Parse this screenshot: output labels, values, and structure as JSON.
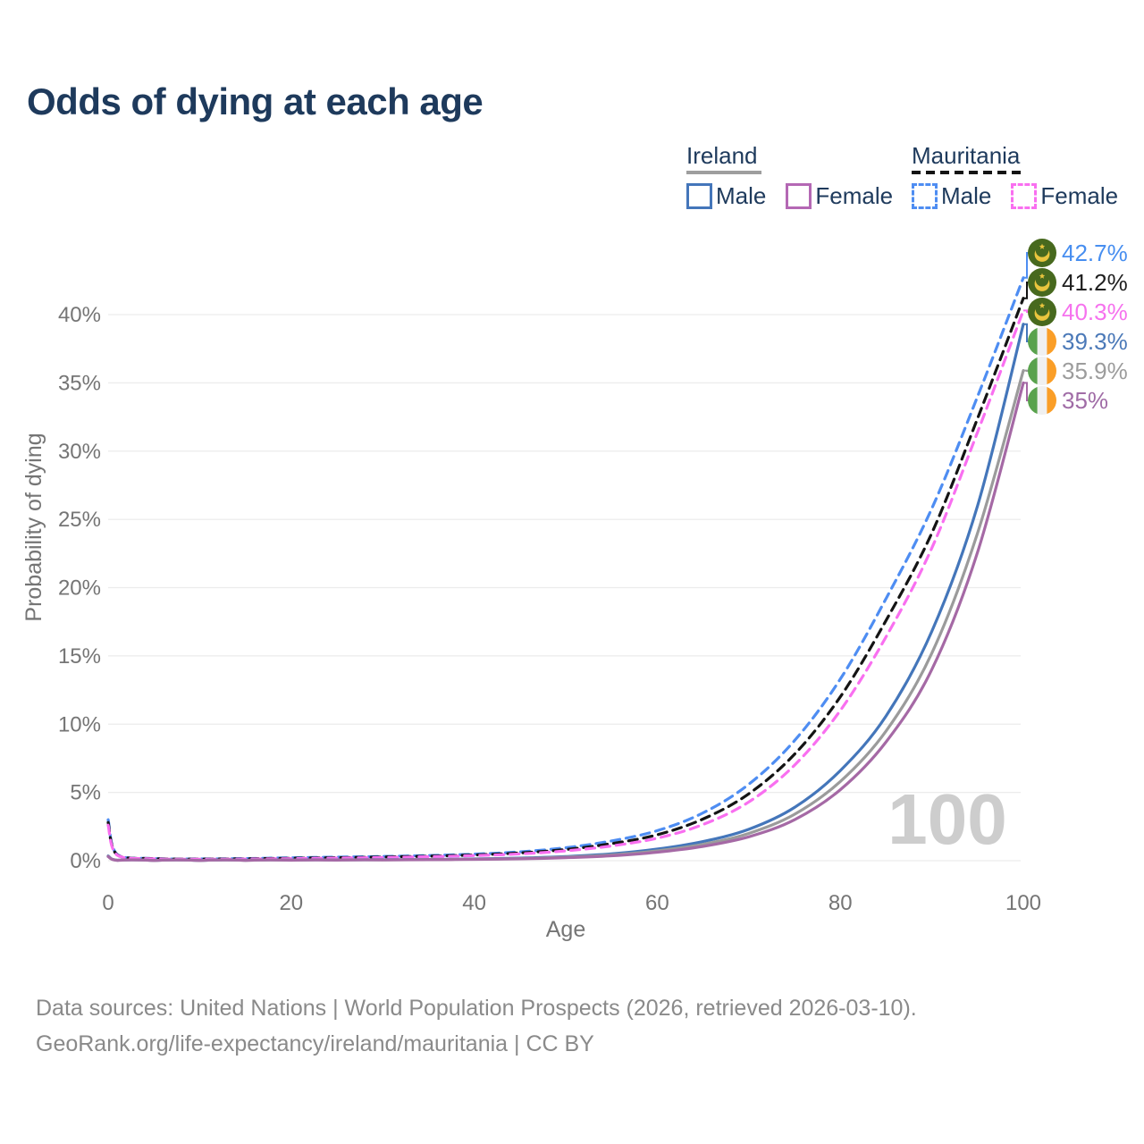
{
  "title": "Odds of dying at each age",
  "legend": {
    "groups": [
      {
        "name": "Ireland",
        "line_style": "solid",
        "underline_color": "#9e9e9e",
        "underline_width": 84,
        "items": [
          {
            "label": "Male",
            "color": "#4476ba",
            "dash": false
          },
          {
            "label": "Female",
            "color": "#b468b4",
            "dash": false
          }
        ]
      },
      {
        "name": "Mauritania",
        "line_style": "dashed",
        "underline_color": "#141414",
        "underline_width": 128,
        "items": [
          {
            "label": "Male",
            "color": "#4e8df2",
            "dash": true
          },
          {
            "label": "Female",
            "color": "#f96ff0",
            "dash": true
          }
        ]
      }
    ]
  },
  "watermark": "100",
  "footer": {
    "line1": "Data sources: United Nations | World Population Prospects (2026, retrieved 2026-03-10).",
    "line2": "GeoRank.org/life-expectancy/ireland/mauritania | CC BY"
  },
  "flag_colors": {
    "mauritania_green": "#47691e",
    "mauritania_gold": "#eac53e",
    "ireland_green": "#59a24d",
    "ireland_white": "#f0f0f0",
    "ireland_orange": "#fa9e27"
  },
  "chart_data": {
    "type": "line",
    "title": "Odds of dying at each age",
    "xlabel": "Age",
    "ylabel": "Probability of dying",
    "xlim": [
      0,
      100
    ],
    "ylim": [
      0,
      44
    ],
    "grid": "horizontal-only",
    "legend_position": "top-right",
    "x_ticks": [
      {
        "v": 0,
        "label": "0"
      },
      {
        "v": 20,
        "label": "20"
      },
      {
        "v": 40,
        "label": "40"
      },
      {
        "v": 60,
        "label": "60"
      },
      {
        "v": 80,
        "label": "80"
      },
      {
        "v": 100,
        "label": "100"
      }
    ],
    "y_ticks": [
      {
        "v": 0,
        "label": "0%"
      },
      {
        "v": 5,
        "label": "5%"
      },
      {
        "v": 10,
        "label": "10%"
      },
      {
        "v": 15,
        "label": "15%"
      },
      {
        "v": 20,
        "label": "20%"
      },
      {
        "v": 25,
        "label": "25%"
      },
      {
        "v": 30,
        "label": "30%"
      },
      {
        "v": 35,
        "label": "35%"
      },
      {
        "v": 40,
        "label": "40%"
      }
    ],
    "x": [
      0,
      1,
      5,
      10,
      15,
      20,
      25,
      30,
      35,
      40,
      45,
      50,
      55,
      60,
      65,
      70,
      75,
      80,
      85,
      90,
      95,
      100
    ],
    "series": [
      {
        "name": "mauritania-male",
        "country": "Mauritania",
        "sex": "male",
        "color": "#4e8df2",
        "dash": true,
        "flag": "mauritania",
        "end_label": "42.7%",
        "end_value": 42.7,
        "end_label_color": "#478ef0",
        "values": [
          3.0,
          0.45,
          0.16,
          0.13,
          0.16,
          0.21,
          0.26,
          0.31,
          0.38,
          0.48,
          0.65,
          0.95,
          1.45,
          2.2,
          3.5,
          5.6,
          8.8,
          13.3,
          19.2,
          25.8,
          34.0,
          42.7
        ]
      },
      {
        "name": "mauritania-combined",
        "country": "Mauritania",
        "sex": "both",
        "color": "#141414",
        "dash": true,
        "flag": "mauritania",
        "end_label": "41.2%",
        "end_value": 41.2,
        "end_label_color": "#1f1f1f",
        "values": [
          2.8,
          0.42,
          0.15,
          0.12,
          0.14,
          0.18,
          0.22,
          0.27,
          0.33,
          0.42,
          0.57,
          0.82,
          1.25,
          1.9,
          3.05,
          4.9,
          7.8,
          12.0,
          17.6,
          24.0,
          32.4,
          41.2
        ]
      },
      {
        "name": "mauritania-female",
        "country": "Mauritania",
        "sex": "female",
        "color": "#f96ff0",
        "dash": true,
        "flag": "mauritania",
        "end_label": "40.3%",
        "end_value": 40.3,
        "end_label_color": "#f672ee",
        "values": [
          2.6,
          0.4,
          0.14,
          0.11,
          0.12,
          0.15,
          0.19,
          0.23,
          0.29,
          0.37,
          0.5,
          0.72,
          1.08,
          1.65,
          2.65,
          4.3,
          7.0,
          11.0,
          16.4,
          22.9,
          31.4,
          40.3
        ]
      },
      {
        "name": "ireland-male",
        "country": "Ireland",
        "sex": "male",
        "color": "#4476ba",
        "dash": false,
        "flag": "ireland",
        "end_label": "39.3%",
        "end_value": 39.3,
        "end_label_color": "#4b79b8",
        "values": [
          0.35,
          0.03,
          0.01,
          0.01,
          0.03,
          0.05,
          0.06,
          0.07,
          0.09,
          0.13,
          0.19,
          0.3,
          0.5,
          0.85,
          1.4,
          2.3,
          3.9,
          6.6,
          10.6,
          16.8,
          26.0,
          39.3
        ]
      },
      {
        "name": "ireland-combined",
        "country": "Ireland",
        "sex": "both",
        "color": "#9b9b9b",
        "dash": false,
        "flag": "ireland",
        "end_label": "35.9%",
        "end_value": 35.9,
        "end_label_color": "#9c9c9c",
        "values": [
          0.32,
          0.03,
          0.01,
          0.01,
          0.02,
          0.04,
          0.05,
          0.06,
          0.08,
          0.11,
          0.16,
          0.26,
          0.42,
          0.72,
          1.2,
          2.0,
          3.4,
          5.8,
          9.5,
          15.2,
          24.0,
          35.9
        ]
      },
      {
        "name": "ireland-female",
        "country": "Ireland",
        "sex": "female",
        "color": "#a569a5",
        "dash": false,
        "flag": "ireland",
        "end_label": "35%",
        "end_value": 35.0,
        "end_label_color": "#a06ca6",
        "values": [
          0.3,
          0.02,
          0.01,
          0.01,
          0.02,
          0.03,
          0.04,
          0.05,
          0.07,
          0.1,
          0.14,
          0.22,
          0.36,
          0.62,
          1.05,
          1.75,
          3.0,
          5.2,
          8.7,
          14.0,
          22.6,
          35.0
        ]
      }
    ]
  }
}
